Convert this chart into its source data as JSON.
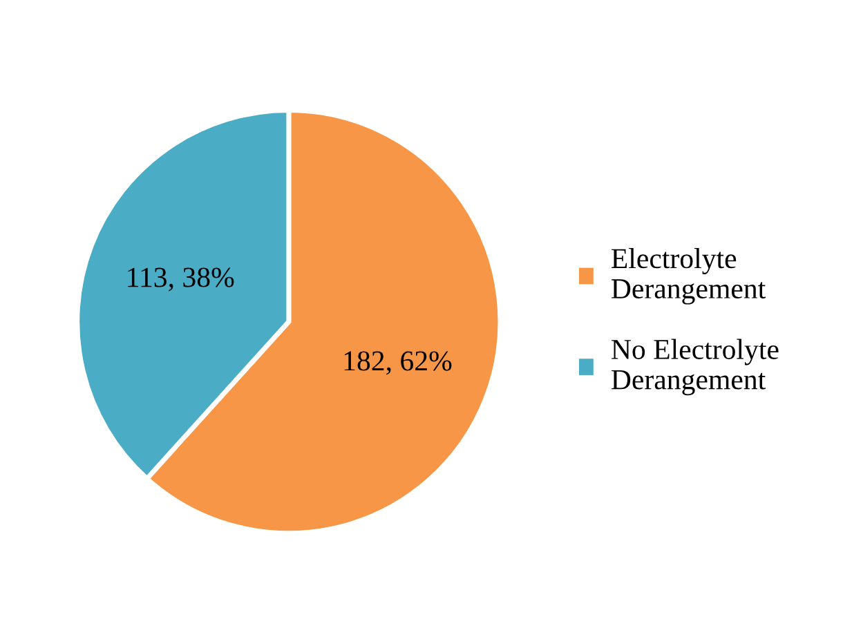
{
  "chart_data": {
    "type": "pie",
    "categories": [
      "Electrolyte Derangement",
      "No Electrolyte Derangement"
    ],
    "values": [
      182,
      113
    ],
    "colors": [
      "#f79646",
      "#4bacc6"
    ],
    "value_labels": [
      "182, 62%",
      "113, 38%"
    ],
    "legend": "right"
  }
}
